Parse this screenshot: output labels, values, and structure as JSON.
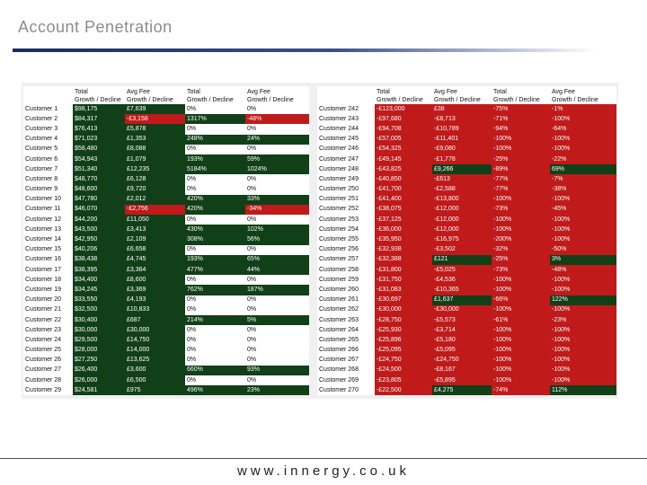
{
  "title": "Account Penetration",
  "footer": "www.innergy.co.uk",
  "colors": {
    "green": "#114018",
    "red": "#c01a1a",
    "accent_rule": "#1c2c5a"
  },
  "left_table": {
    "headers": [
      "",
      "Total\nGrowth / Decline",
      "Avg Fee\nGrowth / Decline",
      "Total\nGrowth / Decline",
      "Avg Fee\nGrowth / Decline"
    ],
    "rows": [
      {
        "name": "Customer 1",
        "c": [
          [
            "$98,175",
            "g"
          ],
          [
            "£7,639",
            "g"
          ],
          [
            "0%",
            "w"
          ],
          [
            "0%",
            "w"
          ]
        ]
      },
      {
        "name": "Customer 2",
        "c": [
          [
            "$84,317",
            "g"
          ],
          [
            "-£3,158",
            "r"
          ],
          [
            "1317%",
            "g"
          ],
          [
            "-48%",
            "r"
          ]
        ]
      },
      {
        "name": "Customer 3",
        "c": [
          [
            "$76,413",
            "g"
          ],
          [
            "£5,878",
            "g"
          ],
          [
            "0%",
            "w"
          ],
          [
            "0%",
            "w"
          ]
        ]
      },
      {
        "name": "Customer 4",
        "c": [
          [
            "$71,023",
            "g"
          ],
          [
            "£1,353",
            "g"
          ],
          [
            "248%",
            "g"
          ],
          [
            "24%",
            "g"
          ]
        ]
      },
      {
        "name": "Customer 5",
        "c": [
          [
            "$58,480",
            "g"
          ],
          [
            "£8,088",
            "g"
          ],
          [
            "0%",
            "w"
          ],
          [
            "0%",
            "w"
          ]
        ]
      },
      {
        "name": "Customer 6",
        "c": [
          [
            "$54,943",
            "g"
          ],
          [
            "£1,079",
            "g"
          ],
          [
            "193%",
            "g"
          ],
          [
            "59%",
            "g"
          ]
        ]
      },
      {
        "name": "Customer 7",
        "c": [
          [
            "$51,340",
            "g"
          ],
          [
            "£12,235",
            "g"
          ],
          [
            "5184%",
            "g"
          ],
          [
            "1024%",
            "g"
          ]
        ]
      },
      {
        "name": "Customer 8",
        "c": [
          [
            "$48,770",
            "g"
          ],
          [
            "£6,128",
            "g"
          ],
          [
            "0%",
            "w"
          ],
          [
            "0%",
            "w"
          ]
        ]
      },
      {
        "name": "Customer 9",
        "c": [
          [
            "$48,600",
            "g"
          ],
          [
            "£9,720",
            "g"
          ],
          [
            "0%",
            "w"
          ],
          [
            "0%",
            "w"
          ]
        ]
      },
      {
        "name": "Customer 10",
        "c": [
          [
            "$47,780",
            "g"
          ],
          [
            "£2,012",
            "g"
          ],
          [
            "420%",
            "g"
          ],
          [
            "33%",
            "g"
          ]
        ]
      },
      {
        "name": "Customer 11",
        "c": [
          [
            "$46,070",
            "g"
          ],
          [
            "-£2,756",
            "r"
          ],
          [
            "420%",
            "g"
          ],
          [
            "-34%",
            "r"
          ]
        ]
      },
      {
        "name": "Customer 12",
        "c": [
          [
            "$44,200",
            "g"
          ],
          [
            "£11,050",
            "g"
          ],
          [
            "0%",
            "w"
          ],
          [
            "0%",
            "w"
          ]
        ]
      },
      {
        "name": "Customer 13",
        "c": [
          [
            "$43,500",
            "g"
          ],
          [
            "£3,413",
            "g"
          ],
          [
            "430%",
            "g"
          ],
          [
            "102%",
            "g"
          ]
        ]
      },
      {
        "name": "Customer 14",
        "c": [
          [
            "$42,950",
            "g"
          ],
          [
            "£2,109",
            "g"
          ],
          [
            "308%",
            "g"
          ],
          [
            "56%",
            "g"
          ]
        ]
      },
      {
        "name": "Customer 15",
        "c": [
          [
            "$40,206",
            "g"
          ],
          [
            "£6,658",
            "g"
          ],
          [
            "0%",
            "w"
          ],
          [
            "0%",
            "w"
          ]
        ]
      },
      {
        "name": "Customer 16",
        "c": [
          [
            "$38,438",
            "g"
          ],
          [
            "£4,745",
            "g"
          ],
          [
            "193%",
            "g"
          ],
          [
            "65%",
            "g"
          ]
        ]
      },
      {
        "name": "Customer 17",
        "c": [
          [
            "$38,395",
            "g"
          ],
          [
            "£3,364",
            "g"
          ],
          [
            "477%",
            "g"
          ],
          [
            "44%",
            "g"
          ]
        ]
      },
      {
        "name": "Customer 18",
        "c": [
          [
            "$34,400",
            "g"
          ],
          [
            "£8,600",
            "g"
          ],
          [
            "0%",
            "w"
          ],
          [
            "0%",
            "w"
          ]
        ]
      },
      {
        "name": "Customer 19",
        "c": [
          [
            "$34,245",
            "g"
          ],
          [
            "£3,369",
            "g"
          ],
          [
            "762%",
            "g"
          ],
          [
            "187%",
            "g"
          ]
        ]
      },
      {
        "name": "Customer 20",
        "c": [
          [
            "$33,550",
            "g"
          ],
          [
            "£4,193",
            "g"
          ],
          [
            "0%",
            "w"
          ],
          [
            "0%",
            "w"
          ]
        ]
      },
      {
        "name": "Customer 21",
        "c": [
          [
            "$32,500",
            "g"
          ],
          [
            "£10,833",
            "g"
          ],
          [
            "0%",
            "w"
          ],
          [
            "0%",
            "w"
          ]
        ]
      },
      {
        "name": "Customer 22",
        "c": [
          [
            "$30,400",
            "g"
          ],
          [
            "£687",
            "g"
          ],
          [
            "214%",
            "g"
          ],
          [
            "5%",
            "g"
          ]
        ]
      },
      {
        "name": "Customer 23",
        "c": [
          [
            "$30,000",
            "g"
          ],
          [
            "£30,000",
            "g"
          ],
          [
            "0%",
            "w"
          ],
          [
            "0%",
            "w"
          ]
        ]
      },
      {
        "name": "Customer 24",
        "c": [
          [
            "$29,500",
            "g"
          ],
          [
            "£14,750",
            "g"
          ],
          [
            "0%",
            "w"
          ],
          [
            "0%",
            "w"
          ]
        ]
      },
      {
        "name": "Customer 25",
        "c": [
          [
            "$28,000",
            "g"
          ],
          [
            "£14,000",
            "g"
          ],
          [
            "0%",
            "w"
          ],
          [
            "0%",
            "w"
          ]
        ]
      },
      {
        "name": "Customer 26",
        "c": [
          [
            "$27,250",
            "g"
          ],
          [
            "£13,625",
            "g"
          ],
          [
            "0%",
            "w"
          ],
          [
            "0%",
            "w"
          ]
        ]
      },
      {
        "name": "Customer 27",
        "c": [
          [
            "$26,400",
            "g"
          ],
          [
            "£3,600",
            "g"
          ],
          [
            "660%",
            "g"
          ],
          [
            "93%",
            "g"
          ]
        ]
      },
      {
        "name": "Customer 28",
        "c": [
          [
            "$26,000",
            "g"
          ],
          [
            "£6,500",
            "g"
          ],
          [
            "0%",
            "w"
          ],
          [
            "0%",
            "w"
          ]
        ]
      },
      {
        "name": "Customer 29",
        "c": [
          [
            "$24,581",
            "g"
          ],
          [
            "£975",
            "g"
          ],
          [
            "496%",
            "g"
          ],
          [
            "23%",
            "g"
          ]
        ]
      }
    ]
  },
  "right_table": {
    "headers": [
      "",
      "Total\nGrowth / Decline",
      "Avg Fee\nGrowth / Decline",
      "Total\nGrowth / Decline",
      "Avg Fee\nGrowth / Decline"
    ],
    "rows": [
      {
        "name": "Customer 242",
        "c": [
          [
            "-£123,000",
            "r"
          ],
          [
            "£38",
            "r"
          ],
          [
            "-75%",
            "r"
          ],
          [
            "-1%",
            "r"
          ]
        ]
      },
      {
        "name": "Customer 243",
        "c": [
          [
            "-£97,680",
            "r"
          ],
          [
            "-£8,713",
            "r"
          ],
          [
            "-71%",
            "r"
          ],
          [
            "-100%",
            "r"
          ]
        ]
      },
      {
        "name": "Customer 244",
        "c": [
          [
            "-£94,708",
            "r"
          ],
          [
            "-£10,789",
            "r"
          ],
          [
            "-94%",
            "r"
          ],
          [
            "-64%",
            "r"
          ]
        ]
      },
      {
        "name": "Customer 245",
        "c": [
          [
            "-£57,005",
            "r"
          ],
          [
            "-£11,401",
            "r"
          ],
          [
            "-100%",
            "r"
          ],
          [
            "-100%",
            "r"
          ]
        ]
      },
      {
        "name": "Customer 246",
        "c": [
          [
            "-£54,325",
            "r"
          ],
          [
            "-£9,080",
            "r"
          ],
          [
            "-100%",
            "r"
          ],
          [
            "-100%",
            "r"
          ]
        ]
      },
      {
        "name": "Customer 247",
        "c": [
          [
            "-£49,145",
            "r"
          ],
          [
            "-£1,778",
            "r"
          ],
          [
            "-25%",
            "r"
          ],
          [
            "-22%",
            "r"
          ]
        ]
      },
      {
        "name": "Customer 248",
        "c": [
          [
            "-£43,825",
            "r"
          ],
          [
            "£9,266",
            "g"
          ],
          [
            "-89%",
            "r"
          ],
          [
            "69%",
            "g"
          ]
        ]
      },
      {
        "name": "Customer 249",
        "c": [
          [
            "-£40,850",
            "r"
          ],
          [
            "-£613",
            "r"
          ],
          [
            "-77%",
            "r"
          ],
          [
            "-7%",
            "r"
          ]
        ]
      },
      {
        "name": "Customer 250",
        "c": [
          [
            "-£41,700",
            "r"
          ],
          [
            "-£2,588",
            "r"
          ],
          [
            "-77%",
            "r"
          ],
          [
            "-38%",
            "r"
          ]
        ]
      },
      {
        "name": "Customer 251",
        "c": [
          [
            "-£41,400",
            "r"
          ],
          [
            "-£13,800",
            "r"
          ],
          [
            "-100%",
            "r"
          ],
          [
            "-100%",
            "r"
          ]
        ]
      },
      {
        "name": "Customer 252",
        "c": [
          [
            "-£38,075",
            "r"
          ],
          [
            "-£12,000",
            "r"
          ],
          [
            "-73%",
            "r"
          ],
          [
            "-45%",
            "r"
          ]
        ]
      },
      {
        "name": "Customer 253",
        "c": [
          [
            "-£37,125",
            "r"
          ],
          [
            "-£12,000",
            "r"
          ],
          [
            "-100%",
            "r"
          ],
          [
            "-100%",
            "r"
          ]
        ]
      },
      {
        "name": "Customer 254",
        "c": [
          [
            "-£36,000",
            "r"
          ],
          [
            "-£12,000",
            "r"
          ],
          [
            "-100%",
            "r"
          ],
          [
            "-100%",
            "r"
          ]
        ]
      },
      {
        "name": "Customer 255",
        "c": [
          [
            "-£35,950",
            "r"
          ],
          [
            "-£16,975",
            "r"
          ],
          [
            "-200%",
            "r"
          ],
          [
            "-100%",
            "r"
          ]
        ]
      },
      {
        "name": "Customer 256",
        "c": [
          [
            "-£32,938",
            "r"
          ],
          [
            "-£3,502",
            "r"
          ],
          [
            "-32%",
            "r"
          ],
          [
            "-50%",
            "r"
          ]
        ]
      },
      {
        "name": "Customer 257",
        "c": [
          [
            "-£32,388",
            "r"
          ],
          [
            "£121",
            "g"
          ],
          [
            "-25%",
            "r"
          ],
          [
            "3%",
            "g"
          ]
        ]
      },
      {
        "name": "Customer 258",
        "c": [
          [
            "-£31,800",
            "r"
          ],
          [
            "-£5,025",
            "r"
          ],
          [
            "-73%",
            "r"
          ],
          [
            "-48%",
            "r"
          ]
        ]
      },
      {
        "name": "Customer 259",
        "c": [
          [
            "-£31,750",
            "r"
          ],
          [
            "-£4,536",
            "r"
          ],
          [
            "-100%",
            "r"
          ],
          [
            "-100%",
            "r"
          ]
        ]
      },
      {
        "name": "Customer 260",
        "c": [
          [
            "-£31,083",
            "r"
          ],
          [
            "-£10,365",
            "r"
          ],
          [
            "-100%",
            "r"
          ],
          [
            "-100%",
            "r"
          ]
        ]
      },
      {
        "name": "Customer 261",
        "c": [
          [
            "-£30,697",
            "r"
          ],
          [
            "£1,637",
            "g"
          ],
          [
            "-66%",
            "r"
          ],
          [
            "122%",
            "g"
          ]
        ]
      },
      {
        "name": "Customer 262",
        "c": [
          [
            "-£30,000",
            "r"
          ],
          [
            "-£30,000",
            "r"
          ],
          [
            "-100%",
            "r"
          ],
          [
            "-100%",
            "r"
          ]
        ]
      },
      {
        "name": "Customer 263",
        "c": [
          [
            "-£28,750",
            "r"
          ],
          [
            "-£5,573",
            "r"
          ],
          [
            "-61%",
            "r"
          ],
          [
            "-23%",
            "r"
          ]
        ]
      },
      {
        "name": "Customer 264",
        "c": [
          [
            "-£25,930",
            "r"
          ],
          [
            "-£3,714",
            "r"
          ],
          [
            "-100%",
            "r"
          ],
          [
            "-100%",
            "r"
          ]
        ]
      },
      {
        "name": "Customer 265",
        "c": [
          [
            "-£25,896",
            "r"
          ],
          [
            "-£5,180",
            "r"
          ],
          [
            "-100%",
            "r"
          ],
          [
            "-100%",
            "r"
          ]
        ]
      },
      {
        "name": "Customer 266",
        "c": [
          [
            "-£25,095",
            "r"
          ],
          [
            "-£5,095",
            "r"
          ],
          [
            "-100%",
            "r"
          ],
          [
            "-100%",
            "r"
          ]
        ]
      },
      {
        "name": "Customer 267",
        "c": [
          [
            "-£24,750",
            "r"
          ],
          [
            "-£24,750",
            "r"
          ],
          [
            "-100%",
            "r"
          ],
          [
            "-100%",
            "r"
          ]
        ]
      },
      {
        "name": "Customer 268",
        "c": [
          [
            "-£24,500",
            "r"
          ],
          [
            "-£8,167",
            "r"
          ],
          [
            "-100%",
            "r"
          ],
          [
            "-100%",
            "r"
          ]
        ]
      },
      {
        "name": "Customer 269",
        "c": [
          [
            "-£23,805",
            "r"
          ],
          [
            "-£5,895",
            "r"
          ],
          [
            "-100%",
            "r"
          ],
          [
            "-100%",
            "r"
          ]
        ]
      },
      {
        "name": "Customer 270",
        "c": [
          [
            "-£22,500",
            "r"
          ],
          [
            "£4,275",
            "g"
          ],
          [
            "-74%",
            "r"
          ],
          [
            "112%",
            "g"
          ]
        ]
      }
    ]
  }
}
